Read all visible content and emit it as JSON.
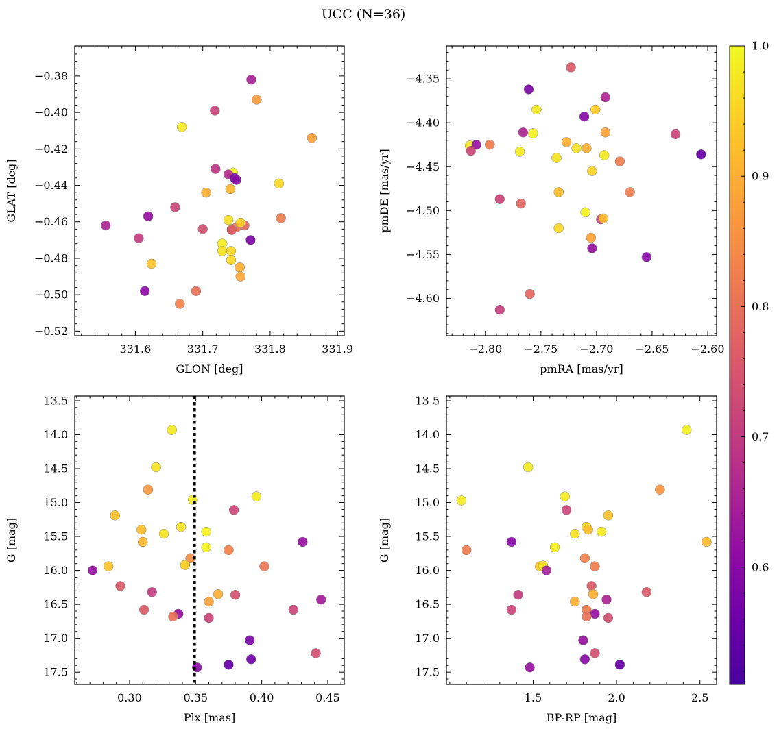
{
  "figure": {
    "suptitle": "UCC (N=36)"
  },
  "colorbar": {
    "vmin": 0.51,
    "vmax": 1.0,
    "colormap": "plasma",
    "ticks": [
      0.6,
      0.7,
      0.8,
      0.9,
      1.0
    ],
    "tick_labels": [
      "0.6",
      "0.7",
      "0.8",
      "0.9",
      "1.0"
    ]
  },
  "chart_data": [
    {
      "type": "scatter",
      "xlabel": "GLON [deg]",
      "ylabel": "GLAT [deg]",
      "xlim": [
        331.51,
        331.91
      ],
      "ylim": [
        -0.5225,
        -0.3635
      ],
      "y_inverted": false,
      "xticks": [
        331.6,
        331.7,
        331.8,
        331.9
      ],
      "xtick_labels": [
        "331.6",
        "331.7",
        "331.8",
        "331.9"
      ],
      "yticks": [
        -0.52,
        -0.5,
        -0.48,
        -0.46,
        -0.44,
        -0.42,
        -0.4,
        -0.38
      ],
      "ytick_labels": [
        "−0.52",
        "−0.50",
        "−0.48",
        "−0.46",
        "−0.44",
        "−0.42",
        "−0.40",
        "−0.38"
      ],
      "x": [
        331.772,
        331.78,
        331.718,
        331.669,
        331.862,
        331.719,
        331.745,
        331.738,
        331.747,
        331.75,
        331.705,
        331.741,
        331.813,
        331.659,
        331.619,
        331.556,
        331.816,
        331.738,
        331.762,
        331.75,
        331.7,
        331.743,
        331.605,
        331.771,
        331.729,
        331.742,
        331.729,
        331.624,
        331.742,
        331.755,
        331.756,
        331.614,
        331.69,
        331.666,
        331.743,
        331.756
      ],
      "y": [
        -0.382,
        -0.393,
        -0.399,
        -0.408,
        -0.414,
        -0.431,
        -0.433,
        -0.434,
        -0.436,
        -0.437,
        -0.444,
        -0.442,
        -0.439,
        -0.452,
        -0.457,
        -0.462,
        -0.458,
        -0.459,
        -0.462,
        -0.463,
        -0.464,
        -0.464,
        -0.469,
        -0.47,
        -0.472,
        -0.476,
        -0.476,
        -0.483,
        -0.481,
        -0.485,
        -0.49,
        -0.498,
        -0.498,
        -0.505,
        -0.4645,
        -0.4605
      ],
      "c": [
        0.65,
        0.87,
        0.72,
        0.98,
        0.88,
        0.69,
        0.99,
        0.67,
        0.58,
        0.6,
        0.9,
        0.91,
        0.96,
        0.72,
        0.62,
        0.66,
        0.82,
        0.97,
        0.78,
        0.8,
        0.74,
        0.92,
        0.7,
        0.58,
        0.98,
        0.96,
        0.97,
        0.93,
        0.96,
        0.9,
        0.89,
        0.6,
        0.8,
        0.83,
        0.76,
        0.95
      ]
    },
    {
      "type": "scatter",
      "xlabel": "pmRA [mas/yr]",
      "ylabel": "pmDE [mas/yr]",
      "xlim": [
        -2.835,
        -2.592
      ],
      "ylim": [
        -4.6425,
        -4.3125
      ],
      "y_inverted": false,
      "xticks": [
        -2.8,
        -2.75,
        -2.7,
        -2.65,
        -2.6
      ],
      "xtick_labels": [
        "−2.80",
        "−2.75",
        "−2.70",
        "−2.65",
        "−2.60"
      ],
      "yticks": [
        -4.6,
        -4.55,
        -4.5,
        -4.45,
        -4.4,
        -4.35
      ],
      "ytick_labels": [
        "−4.60",
        "−4.55",
        "−4.50",
        "−4.45",
        "−4.40",
        "−4.35"
      ],
      "x": [
        -2.723,
        -2.761,
        -2.692,
        -2.754,
        -2.701,
        -2.711,
        -2.766,
        -2.757,
        -2.692,
        -2.814,
        -2.808,
        -2.796,
        -2.813,
        -2.727,
        -2.718,
        -2.709,
        -2.769,
        -2.693,
        -2.736,
        -2.629,
        -2.606,
        -2.704,
        -2.679,
        -2.734,
        -2.67,
        -2.787,
        -2.768,
        -2.71,
        -2.696,
        -2.694,
        -2.734,
        -2.705,
        -2.704,
        -2.655,
        -2.76,
        -2.787
      ],
      "y": [
        -4.337,
        -4.362,
        -4.371,
        -4.385,
        -4.385,
        -4.393,
        -4.411,
        -4.412,
        -4.411,
        -4.426,
        -4.425,
        -4.425,
        -4.432,
        -4.422,
        -4.429,
        -4.429,
        -4.433,
        -4.437,
        -4.44,
        -4.413,
        -4.436,
        -4.455,
        -4.444,
        -4.479,
        -4.479,
        -4.487,
        -4.492,
        -4.502,
        -4.51,
        -4.509,
        -4.52,
        -4.531,
        -4.543,
        -4.553,
        -4.595,
        -4.613
      ],
      "c": [
        0.76,
        0.58,
        0.66,
        0.98,
        0.94,
        0.6,
        0.66,
        0.99,
        0.88,
        0.98,
        0.62,
        0.82,
        0.72,
        0.9,
        0.97,
        0.9,
        0.98,
        0.98,
        0.97,
        0.72,
        0.55,
        0.95,
        0.82,
        0.92,
        0.82,
        0.72,
        0.78,
        0.99,
        0.7,
        0.92,
        0.96,
        0.88,
        0.62,
        0.6,
        0.78,
        0.71
      ]
    },
    {
      "type": "scatter",
      "xlabel": "Plx [mas]",
      "ylabel": "G [mag]",
      "xlim": [
        0.2585,
        0.4625
      ],
      "ylim": [
        17.68,
        13.43
      ],
      "y_inverted": true,
      "xticks": [
        0.3,
        0.35,
        0.4,
        0.45
      ],
      "xtick_labels": [
        "0.30",
        "0.35",
        "0.40",
        "0.45"
      ],
      "yticks": [
        13.5,
        14.0,
        14.5,
        15.0,
        15.5,
        16.0,
        16.5,
        17.0,
        17.5
      ],
      "ytick_labels": [
        "13.5",
        "14.0",
        "14.5",
        "15.0",
        "15.5",
        "16.0",
        "16.5",
        "17.0",
        "17.5"
      ],
      "vline_x": 0.349,
      "x": [
        0.332,
        0.32,
        0.314,
        0.396,
        0.348,
        0.379,
        0.289,
        0.309,
        0.326,
        0.339,
        0.358,
        0.431,
        0.31,
        0.358,
        0.375,
        0.346,
        0.342,
        0.272,
        0.284,
        0.402,
        0.293,
        0.317,
        0.367,
        0.38,
        0.445,
        0.36,
        0.311,
        0.424,
        0.337,
        0.333,
        0.36,
        0.391,
        0.441,
        0.392,
        0.375,
        0.351
      ],
      "y": [
        13.93,
        14.48,
        14.81,
        14.91,
        14.96,
        15.11,
        15.19,
        15.4,
        15.46,
        15.36,
        15.43,
        15.58,
        15.58,
        15.66,
        15.7,
        15.82,
        15.92,
        16.0,
        15.94,
        15.94,
        16.23,
        16.32,
        16.35,
        16.36,
        16.43,
        16.46,
        16.58,
        16.58,
        16.64,
        16.68,
        16.7,
        17.03,
        17.22,
        17.31,
        17.39,
        17.43
      ],
      "c": [
        0.98,
        0.97,
        0.86,
        0.98,
        0.98,
        0.72,
        0.93,
        0.92,
        0.97,
        0.97,
        0.99,
        0.62,
        0.91,
        0.99,
        0.83,
        0.85,
        0.94,
        0.62,
        0.93,
        0.81,
        0.76,
        0.7,
        0.9,
        0.74,
        0.64,
        0.88,
        0.76,
        0.72,
        0.62,
        0.8,
        0.72,
        0.58,
        0.74,
        0.56,
        0.55,
        0.6
      ]
    },
    {
      "type": "scatter",
      "xlabel": "BP-RP [mag]",
      "ylabel": "G [mag]",
      "xlim": [
        0.98,
        2.6
      ],
      "ylim": [
        17.68,
        13.43
      ],
      "y_inverted": true,
      "xticks": [
        1.5,
        2.0,
        2.5
      ],
      "xtick_labels": [
        "1.5",
        "2.0",
        "2.5"
      ],
      "yticks": [
        13.5,
        14.0,
        14.5,
        15.0,
        15.5,
        16.0,
        16.5,
        17.0,
        17.5
      ],
      "ytick_labels": [
        "13.5",
        "14.0",
        "14.5",
        "15.0",
        "15.5",
        "16.0",
        "16.5",
        "17.0",
        "17.5"
      ],
      "x": [
        2.42,
        1.47,
        2.26,
        1.69,
        1.07,
        1.7,
        1.95,
        1.82,
        1.91,
        1.83,
        1.75,
        1.37,
        2.54,
        1.63,
        1.1,
        1.81,
        1.54,
        1.56,
        1.87,
        1.58,
        1.85,
        2.18,
        1.41,
        1.86,
        1.94,
        1.75,
        1.37,
        1.82,
        1.87,
        1.82,
        1.95,
        1.8,
        1.87,
        1.81,
        2.02,
        1.48
      ],
      "y": [
        13.93,
        14.48,
        14.81,
        14.91,
        14.97,
        15.11,
        15.19,
        15.36,
        15.43,
        15.4,
        15.46,
        15.58,
        15.58,
        15.66,
        15.7,
        15.82,
        15.94,
        15.93,
        15.94,
        16.0,
        16.23,
        16.32,
        16.36,
        16.35,
        16.43,
        16.46,
        16.58,
        16.58,
        16.64,
        16.68,
        16.7,
        17.03,
        17.22,
        17.31,
        17.39,
        17.43
      ],
      "c": [
        0.99,
        0.98,
        0.86,
        0.98,
        0.98,
        0.72,
        0.93,
        0.96,
        0.98,
        0.92,
        0.97,
        0.6,
        0.92,
        0.98,
        0.82,
        0.83,
        0.94,
        0.97,
        0.82,
        0.65,
        0.76,
        0.76,
        0.7,
        0.9,
        0.66,
        0.9,
        0.72,
        0.82,
        0.62,
        0.8,
        0.74,
        0.62,
        0.74,
        0.6,
        0.55,
        0.62
      ]
    }
  ]
}
